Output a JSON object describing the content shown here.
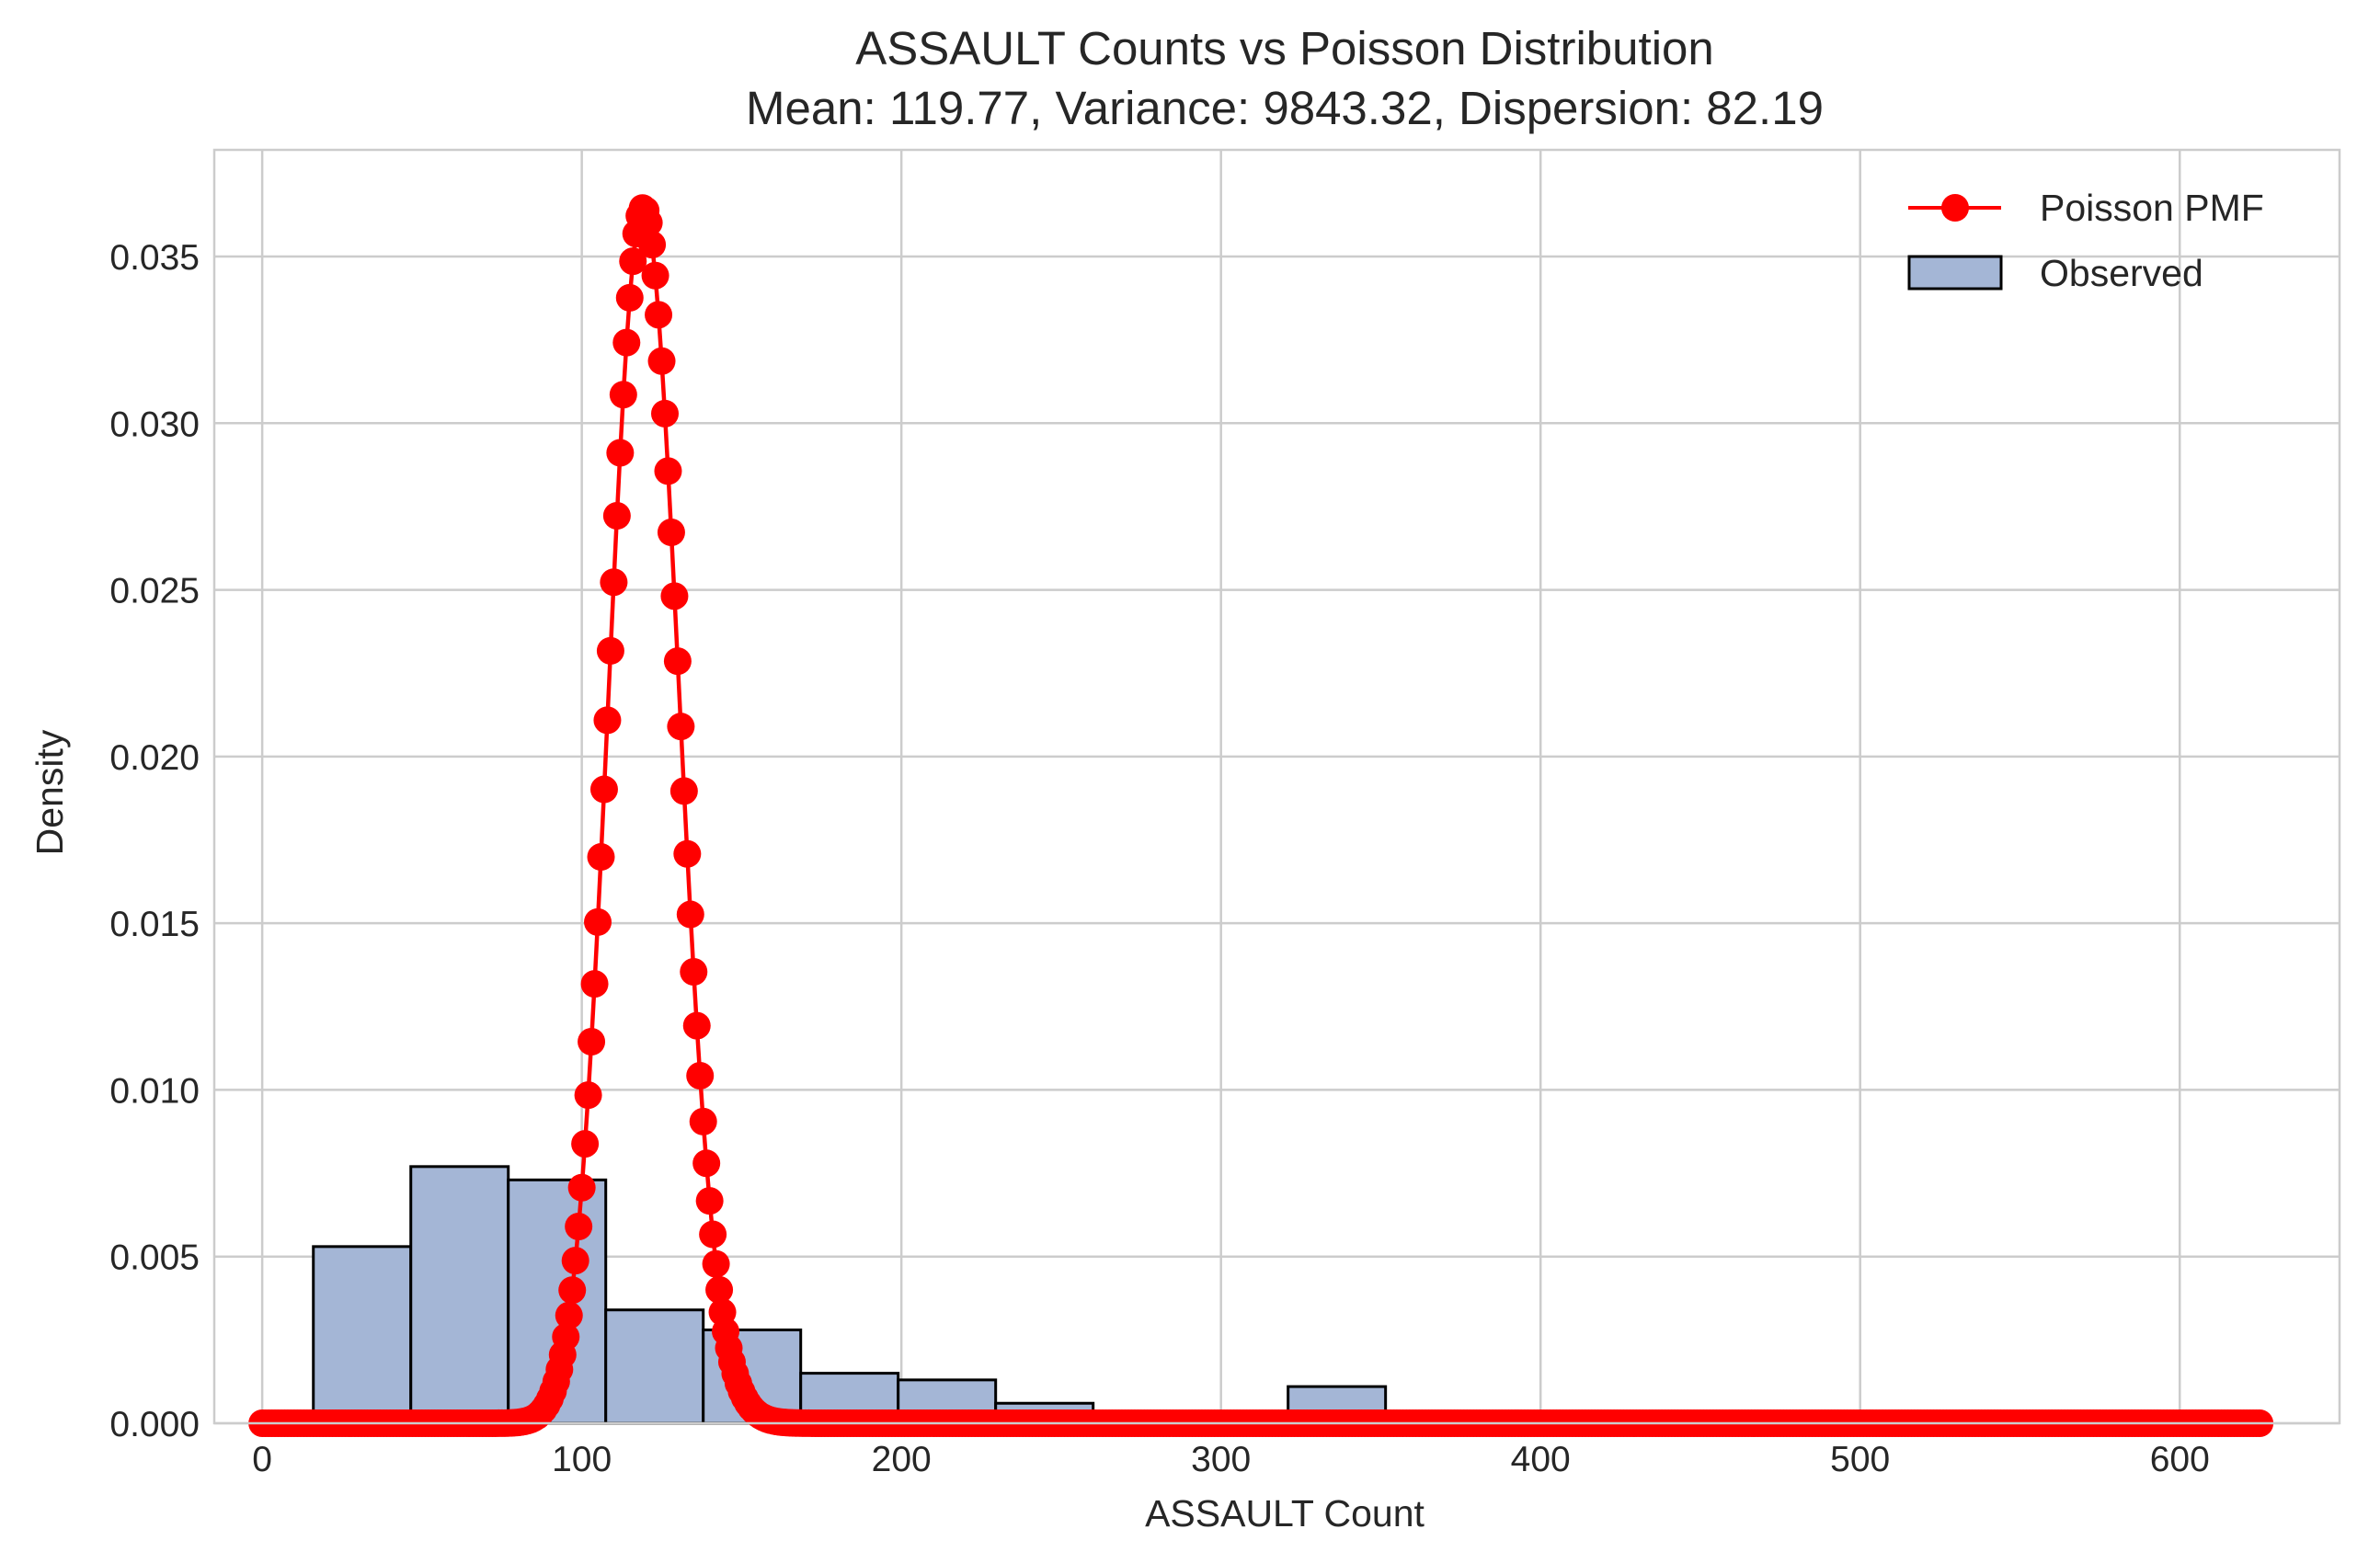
{
  "chart_data": {
    "type": "histogram",
    "title": "ASSAULT Counts vs Poisson Distribution",
    "subtitle": "Mean: 119.77, Variance: 9843.32, Dispersion: 82.19",
    "xlabel": "ASSAULT Count",
    "ylabel": "Density",
    "xlim": [
      -15,
      650
    ],
    "ylim": [
      0,
      0.0382
    ],
    "x_ticks": [
      0,
      100,
      200,
      300,
      400,
      500,
      600
    ],
    "x_tick_labels": [
      "0",
      "100",
      "200",
      "300",
      "400",
      "500",
      "600"
    ],
    "y_ticks": [
      0,
      0.005,
      0.01,
      0.015,
      0.02,
      0.025,
      0.03,
      0.035
    ],
    "y_tick_labels": [
      "0.000",
      "0.005",
      "0.010",
      "0.015",
      "0.020",
      "0.025",
      "0.030",
      "0.035"
    ],
    "grid": true,
    "legend_position": "top-right",
    "legend": [
      {
        "label": "Poisson PMF",
        "kind": "line-marker",
        "color": "#ff0000"
      },
      {
        "label": "Observed",
        "kind": "patch",
        "color": "#a4b6d6"
      }
    ],
    "histogram": {
      "name": "Observed",
      "color": "#a4b6d6",
      "edge_color": "#000000",
      "bin_edges": [
        16,
        46.5,
        77,
        107.5,
        138,
        168.5,
        199,
        229.5,
        260,
        290.5,
        321,
        351.5
      ],
      "values": [
        0.0053,
        0.0077,
        0.0073,
        0.0034,
        0.0028,
        0.0015,
        0.0013,
        0.0006,
        0.0,
        0.0,
        0.0011
      ]
    },
    "poisson": {
      "name": "Poisson PMF",
      "color": "#ff0000",
      "lambda": 119.77,
      "k_min": 0,
      "k_max": 625
    }
  }
}
